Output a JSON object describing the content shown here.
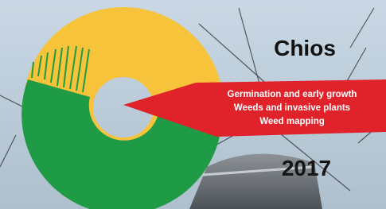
{
  "title": "Chios",
  "callout": {
    "lines": [
      "Germination and early growth",
      "Weeds and invasive plants",
      "Weed mapping"
    ]
  },
  "year": "2017"
}
